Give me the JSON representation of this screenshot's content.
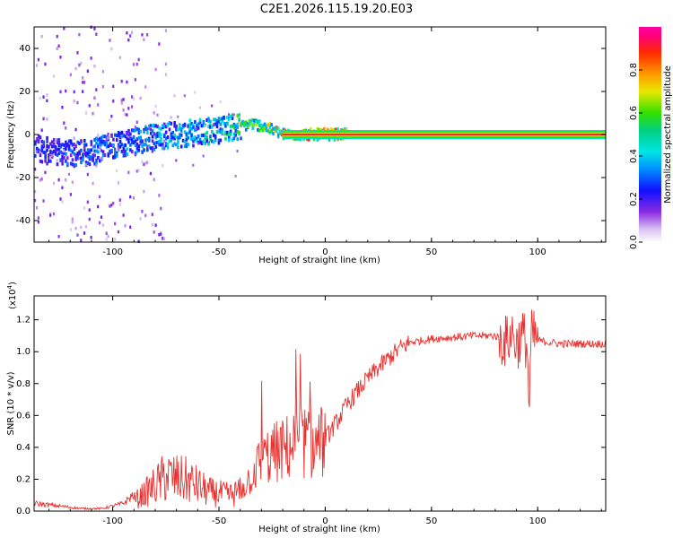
{
  "title": "C2E1.2026.115.19.20.E03",
  "chart_data": [
    {
      "type": "heatmap",
      "name": "spectrogram",
      "xlabel": "Height of straight line (km)",
      "ylabel": "Frequency (Hz)",
      "xlim": [
        -137,
        132
      ],
      "ylim": [
        -50,
        50
      ],
      "xticks": [
        -100,
        -50,
        0,
        50,
        100
      ],
      "yticks": [
        -40,
        -20,
        0,
        20,
        40
      ],
      "colorbar": {
        "label": "Normalized spectral amplitude",
        "range": [
          0.0,
          1.0
        ],
        "ticks": [
          0.0,
          0.2,
          0.4,
          0.6,
          0.8
        ],
        "tick_labels": [
          "0.0",
          "0.2",
          "0.4",
          "0.6",
          "0.8"
        ]
      },
      "ridge": {
        "x": [
          -137,
          -130,
          -120,
          -110,
          -100,
          -90,
          -80,
          -70,
          -60,
          -50,
          -45,
          -40,
          -35,
          -30,
          -25,
          -20,
          -10,
          0,
          10,
          20,
          50,
          80,
          93,
          100,
          132
        ],
        "frequency": [
          -6,
          -8,
          -9,
          -8,
          -5,
          -3,
          -1,
          0,
          1,
          2,
          3,
          4,
          5,
          4,
          2,
          0,
          0,
          0,
          0,
          0,
          0,
          0,
          0,
          0,
          0
        ],
        "amplitude": [
          0.3,
          0.3,
          0.35,
          0.35,
          0.4,
          0.4,
          0.45,
          0.45,
          0.5,
          0.55,
          0.6,
          0.65,
          0.7,
          0.7,
          0.8,
          0.9,
          0.92,
          0.95,
          0.97,
          0.98,
          0.98,
          0.98,
          0.98,
          0.98,
          0.98
        ]
      }
    },
    {
      "type": "line",
      "name": "snr",
      "xlabel": "Height of straight line (km)",
      "ylabel": "SNR (10 * v/v)",
      "scale_note": "(x10",
      "scale_exp": "4",
      "scale_close": ")",
      "xlim": [
        -137,
        132
      ],
      "ylim": [
        0.0,
        1.35
      ],
      "xticks": [
        -100,
        -50,
        0,
        50,
        100
      ],
      "yticks": [
        0.0,
        0.2,
        0.4,
        0.6,
        0.8,
        1.0,
        1.2
      ],
      "ytick_labels": [
        "0.0",
        "0.2",
        "0.4",
        "0.6",
        "0.8",
        "1.0",
        "1.2"
      ],
      "series": [
        {
          "name": "SNR",
          "color": "#e8312f",
          "x": [
            -137,
            -125,
            -115,
            -105,
            -95,
            -88,
            -82,
            -78,
            -75,
            -70,
            -65,
            -60,
            -55,
            -50,
            -45,
            -40,
            -35,
            -30,
            -25,
            -20,
            -15,
            -10,
            -5,
            0,
            5,
            10,
            15,
            20,
            25,
            30,
            35,
            40,
            45,
            50,
            60,
            70,
            80,
            85,
            88,
            90,
            93,
            95,
            96,
            97,
            100,
            110,
            120,
            132
          ],
          "values": [
            0.03,
            0.02,
            0.01,
            0.01,
            0.03,
            0.08,
            0.14,
            0.18,
            0.22,
            0.2,
            0.19,
            0.16,
            0.12,
            0.11,
            0.1,
            0.12,
            0.22,
            0.32,
            0.36,
            0.38,
            0.42,
            0.44,
            0.4,
            0.45,
            0.55,
            0.66,
            0.75,
            0.83,
            0.9,
            0.96,
            1.02,
            1.06,
            1.07,
            1.08,
            1.09,
            1.1,
            1.1,
            1.06,
            1.12,
            1.05,
            1.1,
            1.05,
            0.62,
            1.1,
            1.07,
            1.05,
            1.05,
            1.05
          ]
        }
      ]
    }
  ],
  "colors": {
    "line": "#e8312f",
    "axis": "#000000",
    "background": "#ffffff"
  }
}
